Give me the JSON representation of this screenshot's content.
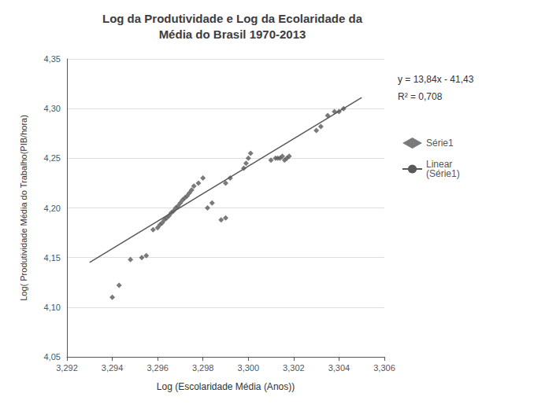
{
  "chart_data": {
    "type": "scatter",
    "title": "Log da Produtividade e Log da Ecolaridade da\nMédia do Brasil 1970-2013",
    "xlabel": "Log (Escolaridade Média (Anos))",
    "ylabel": "Log( Produtividade Média do Trabalho(PIB/hora)",
    "xlim": [
      3.292,
      3.306
    ],
    "ylim": [
      4.05,
      4.35
    ],
    "xticks": [
      {
        "value": 3.292,
        "label": "3,292"
      },
      {
        "value": 3.294,
        "label": "3,294"
      },
      {
        "value": 3.296,
        "label": "3,296"
      },
      {
        "value": 3.298,
        "label": "3,298"
      },
      {
        "value": 3.3,
        "label": "3,300"
      },
      {
        "value": 3.302,
        "label": "3,302"
      },
      {
        "value": 3.304,
        "label": "3,304"
      },
      {
        "value": 3.306,
        "label": "3,306"
      }
    ],
    "yticks": [
      {
        "value": 4.05,
        "label": "4,05"
      },
      {
        "value": 4.1,
        "label": "4,10"
      },
      {
        "value": 4.15,
        "label": "4,15"
      },
      {
        "value": 4.2,
        "label": "4,20"
      },
      {
        "value": 4.25,
        "label": "4,25"
      },
      {
        "value": 4.3,
        "label": "4,30"
      },
      {
        "value": 4.35,
        "label": "4,35"
      }
    ],
    "grid": "y",
    "legend": "right",
    "annotations": [
      "y = 13,84x - 41,43",
      "R² = 0,708"
    ],
    "series": [
      {
        "name": "Série1",
        "type": "scatter",
        "marker": "diamond",
        "color": "#595959",
        "x": [
          3.294,
          3.2943,
          3.2948,
          3.2953,
          3.2955,
          3.2958,
          3.296,
          3.2961,
          3.2962,
          3.2963,
          3.2964,
          3.2965,
          3.2966,
          3.2967,
          3.2968,
          3.2969,
          3.297,
          3.2971,
          3.2972,
          3.2973,
          3.2974,
          3.2975,
          3.2976,
          3.2978,
          3.298,
          3.2982,
          3.2984,
          3.2988,
          3.299,
          3.299,
          3.2992,
          3.2998,
          3.2999,
          3.3,
          3.3001,
          3.301,
          3.3012,
          3.3013,
          3.3014,
          3.3015,
          3.3016,
          3.3017,
          3.3018,
          3.303,
          3.3032,
          3.3035,
          3.3038,
          3.304,
          3.3042
        ],
        "values": [
          4.11,
          4.122,
          4.148,
          4.15,
          4.152,
          4.178,
          4.18,
          4.183,
          4.185,
          4.188,
          4.19,
          4.192,
          4.195,
          4.197,
          4.2,
          4.202,
          4.205,
          4.208,
          4.21,
          4.212,
          4.215,
          4.218,
          4.222,
          4.225,
          4.23,
          4.2,
          4.205,
          4.188,
          4.19,
          4.225,
          4.23,
          4.24,
          4.245,
          4.25,
          4.255,
          4.248,
          4.25,
          4.25,
          4.25,
          4.252,
          4.248,
          4.25,
          4.252,
          4.278,
          4.282,
          4.293,
          4.297,
          4.297,
          4.3
        ]
      },
      {
        "name": "Linear\n(Série1)",
        "type": "line",
        "line_style": "solid",
        "color": "#595959",
        "x": [
          3.293,
          3.305
        ],
        "values": [
          4.14512,
          4.3112
        ]
      }
    ]
  }
}
